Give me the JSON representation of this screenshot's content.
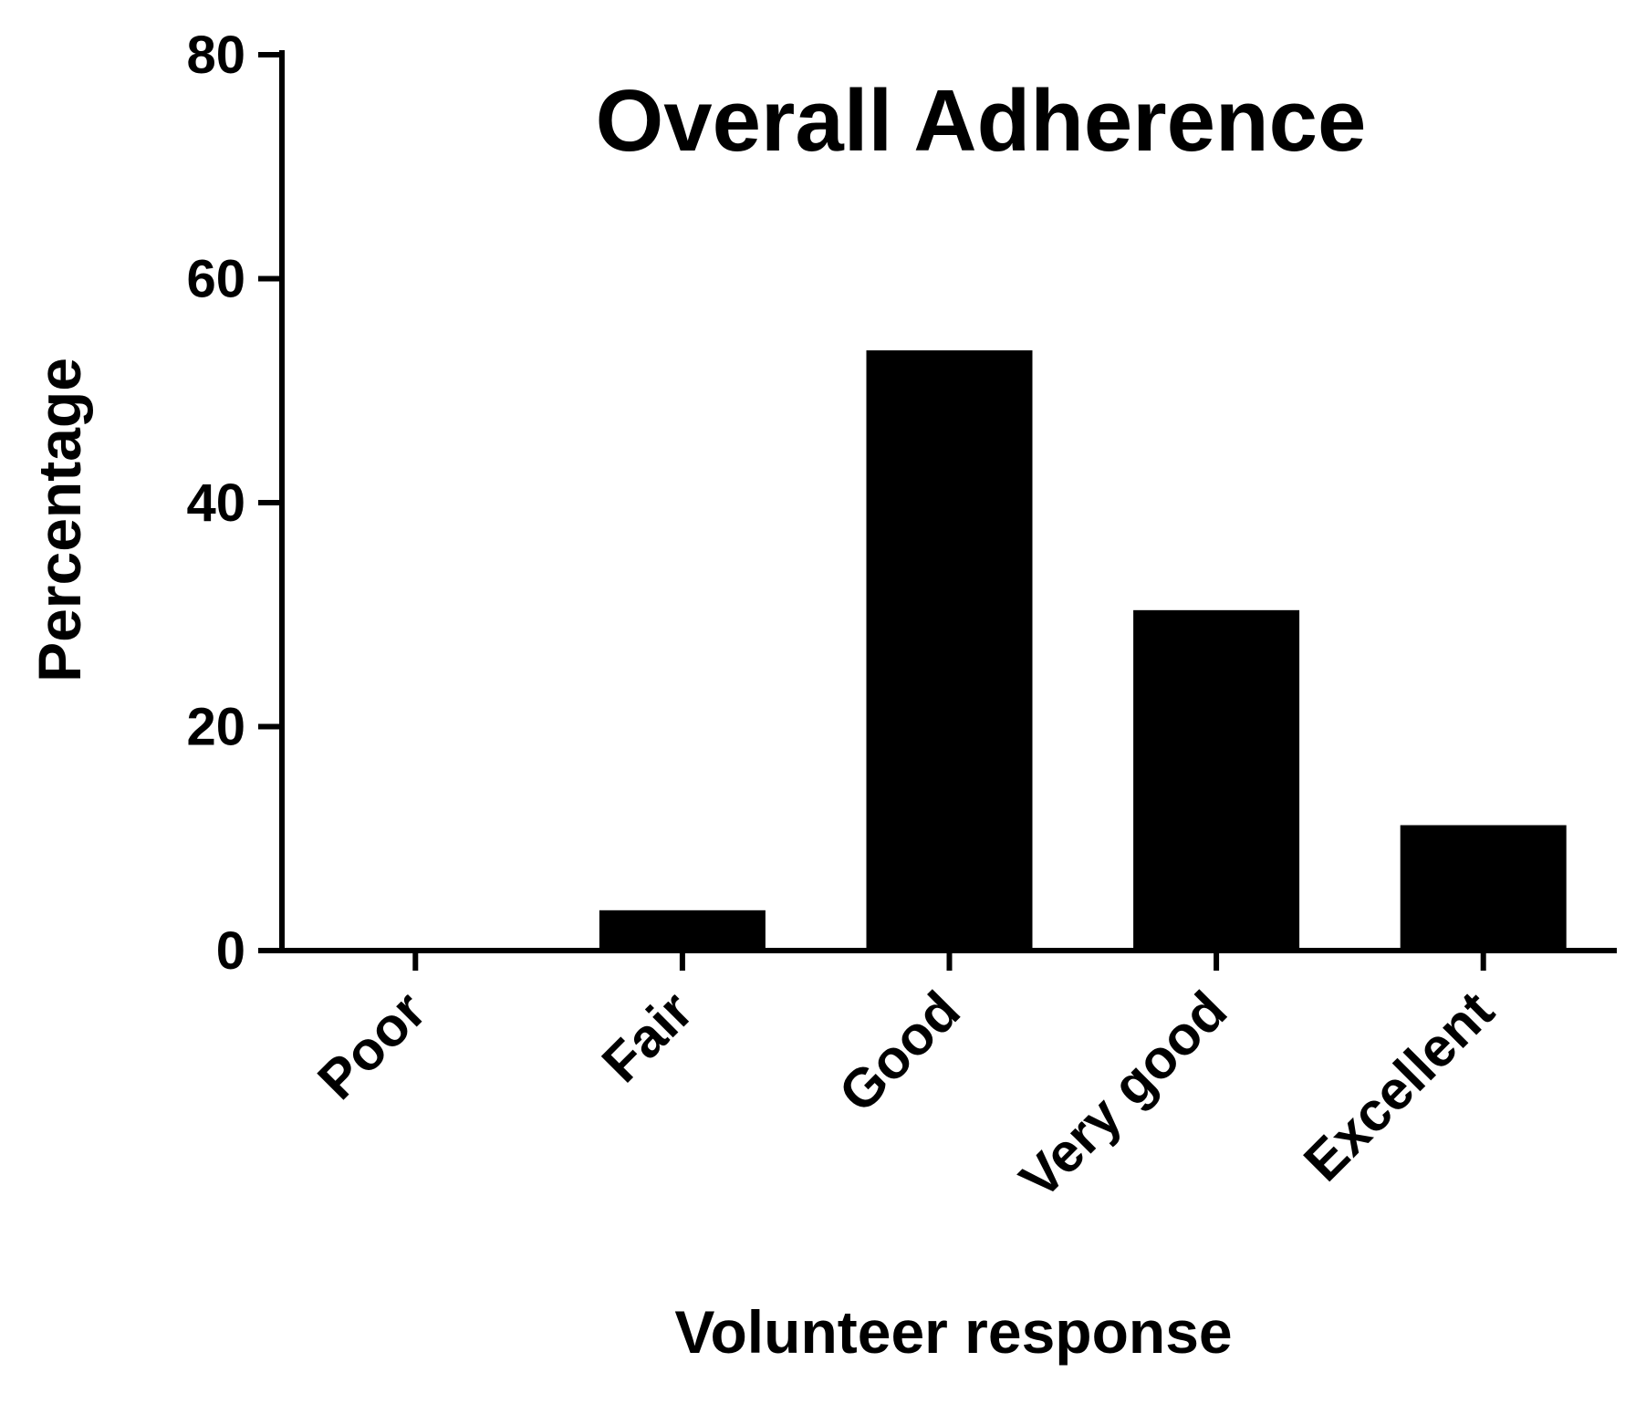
{
  "chart_data": {
    "type": "bar",
    "title": "Overall Adherence",
    "xlabel": "Volunteer response",
    "ylabel": "Percentage",
    "categories": [
      "Poor",
      "Fair",
      "Good",
      "Very good",
      "Excellent"
    ],
    "values": [
      0,
      3.6,
      53.6,
      30.4,
      11.2
    ],
    "ylim": [
      0,
      80
    ],
    "yticks": [
      "0",
      "20",
      "40",
      "60",
      "80"
    ],
    "grid": false,
    "legend": "none",
    "bar_color": "#000000"
  }
}
